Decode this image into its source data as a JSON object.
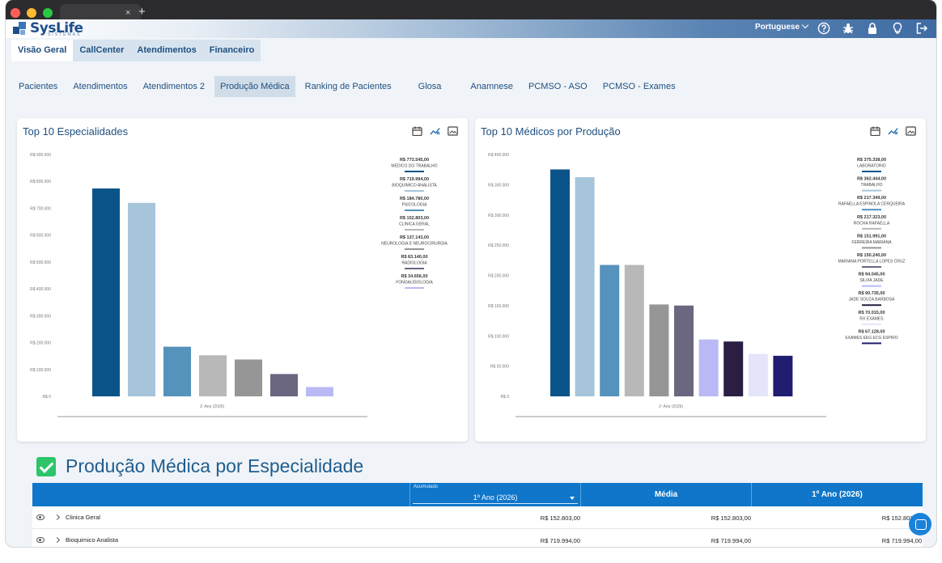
{
  "browser": {
    "tab_close": "×",
    "tab_new": "+"
  },
  "app": {
    "logo_text": "SysLife",
    "logo_sub": "SISTEMAS",
    "language": "Portuguese"
  },
  "main_nav": [
    {
      "label": "Visão Geral",
      "active": true
    },
    {
      "label": "CallCenter",
      "active": false
    },
    {
      "label": "Atendimentos",
      "active": false
    },
    {
      "label": "Financeiro",
      "active": false
    }
  ],
  "sub_nav": [
    {
      "label": "Pacientes",
      "active": false
    },
    {
      "label": "Atendimentos",
      "active": false
    },
    {
      "label": "Atendimentos 2",
      "active": false
    },
    {
      "label": "Produção Médica",
      "active": true
    },
    {
      "label": "Ranking de Pacientes",
      "active": false
    },
    {
      "label": "Glosa",
      "active": false
    },
    {
      "label": "Anamnese",
      "active": false
    },
    {
      "label": "PCMSO - ASO",
      "active": false
    },
    {
      "label": "PCMSO - Exames",
      "active": false
    }
  ],
  "icons": {
    "top": [
      "help-icon",
      "bug-icon",
      "lock-icon",
      "lightbulb-icon",
      "logout-icon"
    ],
    "card": [
      "calendar-icon",
      "chart-type-icon",
      "image-export-icon"
    ]
  },
  "colors": {
    "accent": "#1f4f80",
    "table_header": "#0f76c9"
  },
  "chart_data": [
    {
      "type": "bar",
      "title": "Top 10 Especialidades",
      "xlabel": "1º Ano (2026)",
      "categories": [
        "MEDICO DO TRABALHO",
        "BIOQUIMICO ANALISTA",
        "PSICOLOGIA",
        "CLINICA GERAL",
        "NEUROLOGIA E NEUROCIRURGIA",
        "RADIOLOGIA",
        "FONOAUDIOLOGIA"
      ],
      "values": [
        773545,
        719994,
        184780,
        152803,
        137143,
        83140,
        34656
      ],
      "value_labels": [
        "R$ 773.545,00",
        "R$ 719.994,00",
        "R$ 184.780,00",
        "R$ 152.803,00",
        "R$ 137.143,00",
        "R$ 83.140,00",
        "R$ 34.656,00"
      ],
      "colors": [
        "#0b5489",
        "#a6c5da",
        "#5592bc",
        "#b8b8b8",
        "#969696",
        "#6b6780",
        "#b9b9f5"
      ],
      "ylim": [
        0,
        900000
      ],
      "yticks": [
        0,
        100000,
        200000,
        300000,
        400000,
        500000,
        600000,
        700000,
        800000,
        900000
      ],
      "ytick_labels": [
        "R$ 0",
        "R$ 100.000",
        "R$ 200.000",
        "R$ 300.000",
        "R$ 400.000",
        "R$ 500.000",
        "R$ 600.000",
        "R$ 700.000",
        "R$ 800.000",
        "R$ 900.000"
      ],
      "legend": "right"
    },
    {
      "type": "bar",
      "title": "Top 10 Médicos por Produção",
      "xlabel": "1º Ano (2026)",
      "categories": [
        "LABORATORIO",
        "TRABALHO",
        "RAFAELLA ESPINOLA CERQUEIRA",
        "ROCHA RAFAELLA",
        "FERREIRA MARIANA",
        "MARIANA PORTELLA LOPES CRUZ",
        "SILVIA JADE",
        "JADE SOUZA BARBOSA",
        "RX EXAMES",
        "EXAMES EEG ECG ESPIRO"
      ],
      "values": [
        375338,
        362444,
        217349,
        217323,
        151991,
        150240,
        94045,
        90735,
        70015,
        67128
      ],
      "value_labels": [
        "R$ 375.338,00",
        "R$ 362.444,00",
        "R$ 217.349,00",
        "R$ 217.323,00",
        "R$ 151.991,00",
        "R$ 150.240,00",
        "R$ 94.045,00",
        "R$ 90.735,00",
        "R$ 70.015,00",
        "R$ 67.128,00"
      ],
      "colors": [
        "#0b5489",
        "#a6c5da",
        "#5592bc",
        "#b8b8b8",
        "#969696",
        "#6b6780",
        "#b9b9f5",
        "#2a1f43",
        "#e4e4fb",
        "#211d70"
      ],
      "ylim": [
        0,
        400000
      ],
      "yticks": [
        0,
        50000,
        100000,
        150000,
        200000,
        250000,
        300000,
        350000,
        400000
      ],
      "ytick_labels": [
        "R$ 0",
        "R$ 50.000",
        "R$ 100.000",
        "R$ 150.000",
        "R$ 200.000",
        "R$ 250.000",
        "R$ 300.000",
        "R$ 350.000",
        "R$ 400.000"
      ],
      "legend": "right"
    }
  ],
  "section": {
    "title": "Produção Médica por Especialidade"
  },
  "table": {
    "accumulated_label": "Acumulado",
    "accumulated_value": "1º Ano (2026)",
    "headers": [
      "Média",
      "1º Ano (2026)"
    ],
    "rows": [
      {
        "name": "Clinica Geral",
        "values": [
          "R$ 152.803,00",
          "R$ 152.803,00",
          "R$ 152.803,00"
        ]
      },
      {
        "name": "Bioquimico Analista",
        "values": [
          "R$ 719.994,00",
          "R$ 719.994,00",
          "R$ 719.994,00"
        ]
      }
    ]
  }
}
